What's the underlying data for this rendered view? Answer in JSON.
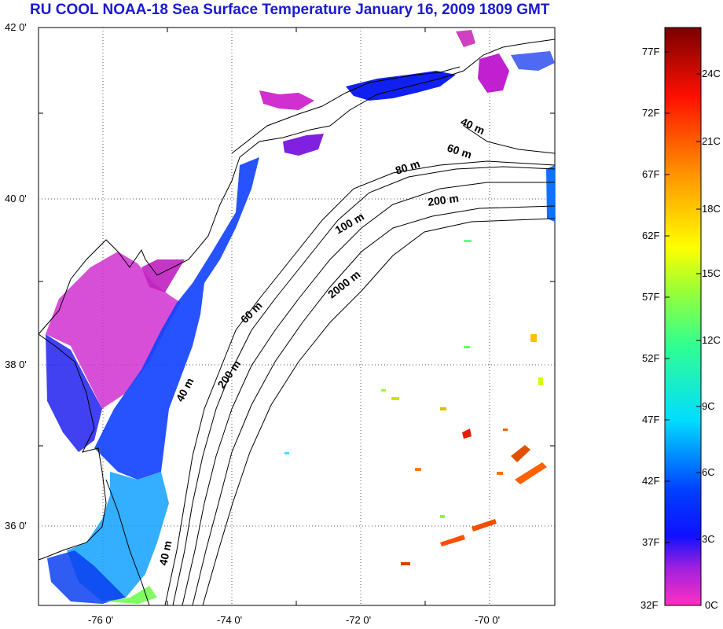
{
  "title": "RU COOL  NOAA-18 Sea Surface Temperature January 16, 2009 1809 GMT",
  "map": {
    "lat_labels": [
      "42 0'",
      "40 0'",
      "38 0'",
      "36 0'"
    ],
    "lon_labels": [
      "-76 0'",
      "-74 0'",
      "-72 0'",
      "-70 0'"
    ],
    "contour_labels": [
      "40 m",
      "60 m",
      "80 m",
      "200 m",
      "100 m",
      "2000 m",
      "60 m",
      "200 m",
      "40 m",
      "40 m"
    ]
  },
  "colorbar": {
    "fahrenheit_labels": [
      "77F",
      "72F",
      "67F",
      "62F",
      "57F",
      "52F",
      "47F",
      "42F",
      "37F",
      "32F"
    ],
    "celsius_labels": [
      "24C",
      "21C",
      "18C",
      "15C",
      "12C",
      "9C",
      "6C",
      "3C",
      "0C"
    ],
    "colors": [
      "#ff30c0",
      "#a020e0",
      "#0010ff",
      "#00a0ff",
      "#00ffff",
      "#40ff80",
      "#c0ff20",
      "#ffff00",
      "#ff9000",
      "#ff2000",
      "#800000"
    ]
  }
}
